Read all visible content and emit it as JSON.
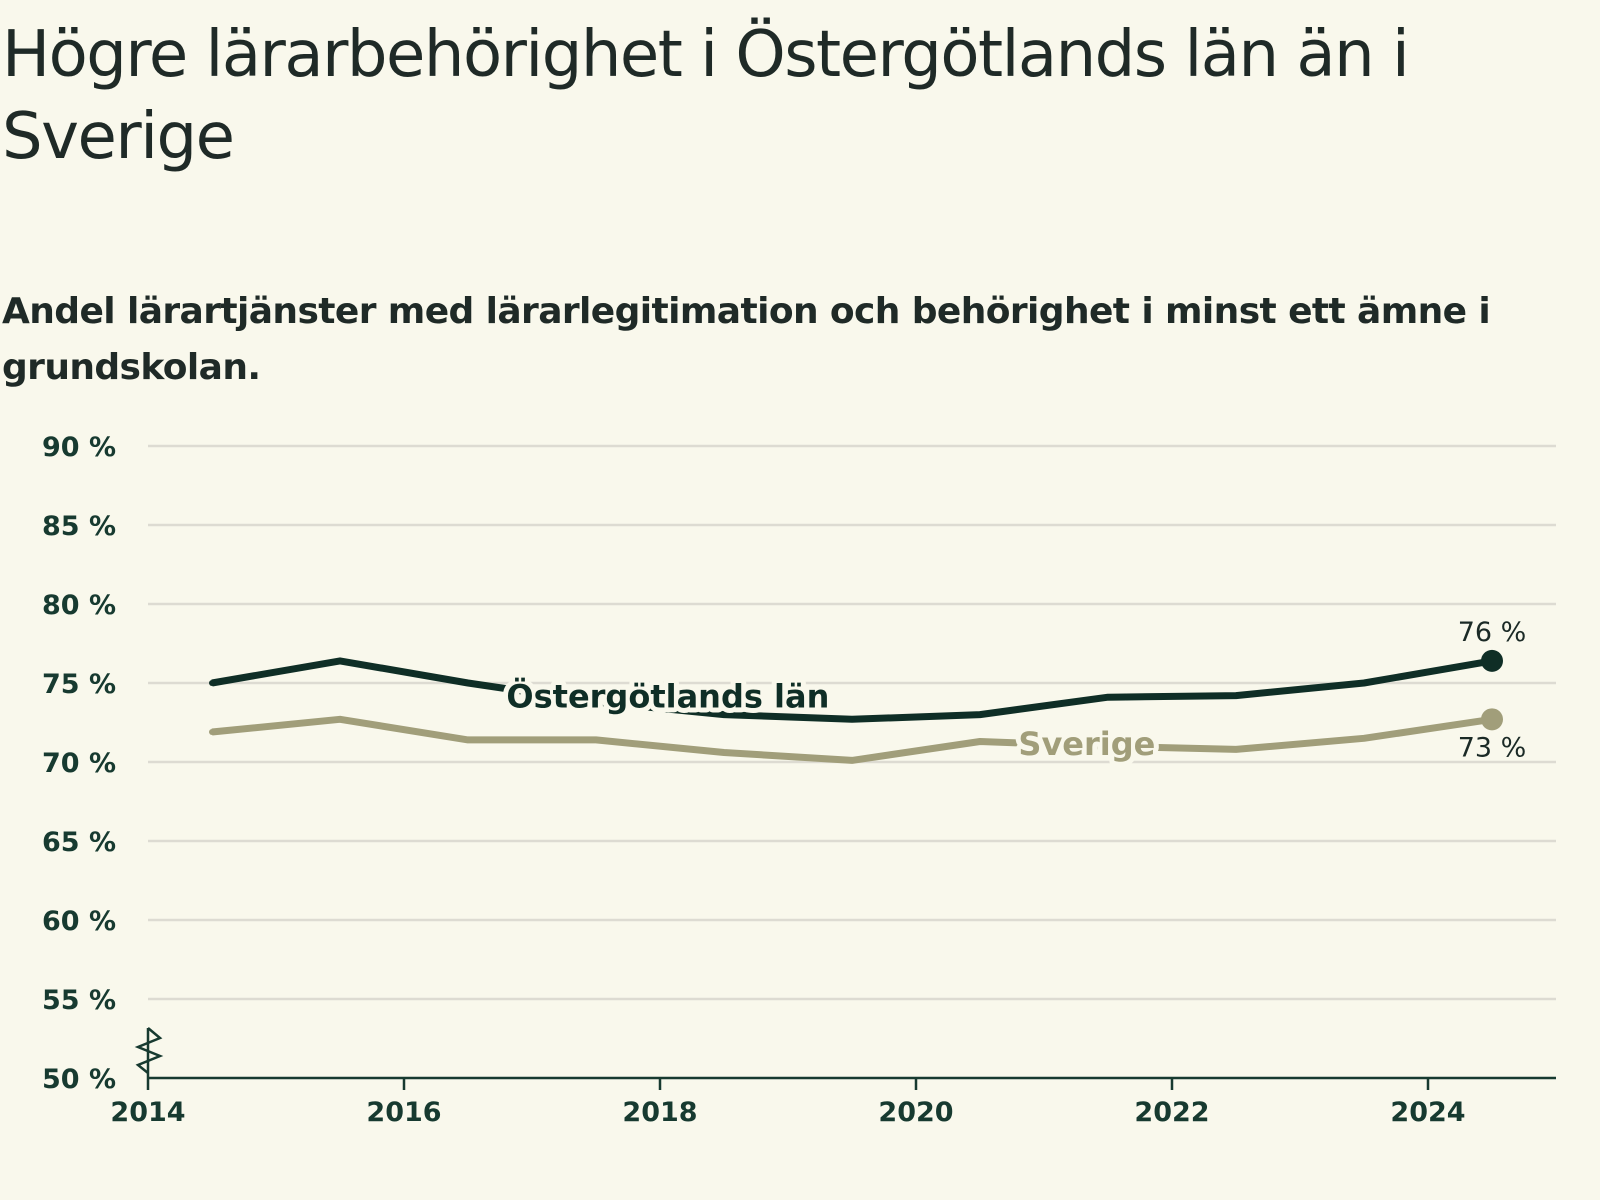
{
  "title": "Högre lärarbehörighet i Östergötlands län än i Sverige",
  "subtitle": "Andel lärartjänster med lärarlegitimation och behörighet i minst ett ämne i grundskolan.",
  "colors": {
    "ostergotland": "#0f2e26",
    "sverige": "#a19e7a",
    "grid": "#dddbd2",
    "axis": "#173a30",
    "background": "#f9f8ec"
  },
  "chart_data": {
    "type": "line",
    "x": [
      2014.5,
      2015.5,
      2016.5,
      2017.5,
      2018.5,
      2019.5,
      2020.5,
      2021.5,
      2022.5,
      2023.5,
      2024.5
    ],
    "series": [
      {
        "name": "Östergötlands län",
        "values": [
          75.0,
          76.4,
          75.0,
          73.8,
          73.0,
          72.7,
          73.0,
          74.1,
          74.2,
          75.0,
          76.4
        ],
        "end_label": "76 %"
      },
      {
        "name": "Sverige",
        "values": [
          71.9,
          72.7,
          71.4,
          71.4,
          70.6,
          70.1,
          71.3,
          71.0,
          70.8,
          71.5,
          72.7
        ],
        "end_label": "73 %"
      }
    ],
    "ylim": [
      50,
      90
    ],
    "yticks": [
      {
        "value": 90,
        "label": "90 %"
      },
      {
        "value": 85,
        "label": "85 %"
      },
      {
        "value": 80,
        "label": "80 %"
      },
      {
        "value": 75,
        "label": "75 %"
      },
      {
        "value": 70,
        "label": "70 %"
      },
      {
        "value": 65,
        "label": "65 %"
      },
      {
        "value": 60,
        "label": "60 %"
      },
      {
        "value": 55,
        "label": "55 %"
      },
      {
        "value": 50,
        "label": "50 %"
      }
    ],
    "xlim": [
      2014,
      2025
    ],
    "xticks": [
      {
        "value": 2014,
        "label": "2014"
      },
      {
        "value": 2016,
        "label": "2016"
      },
      {
        "value": 2018,
        "label": "2018"
      },
      {
        "value": 2020,
        "label": "2020"
      },
      {
        "value": 2022,
        "label": "2022"
      },
      {
        "value": 2024,
        "label": "2024"
      }
    ],
    "grid": true,
    "axis_break": true,
    "legend": "inline labels"
  }
}
